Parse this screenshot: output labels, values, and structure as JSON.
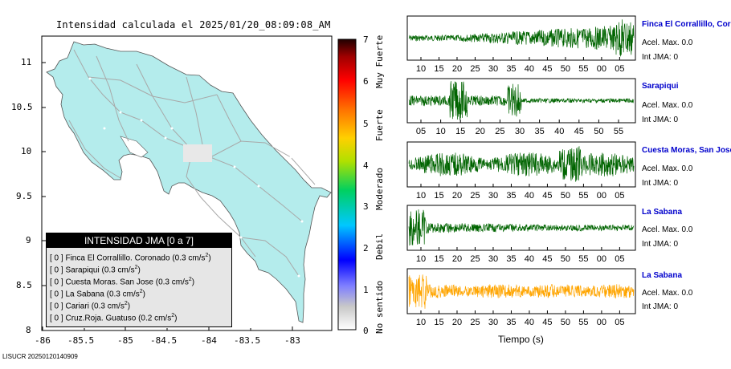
{
  "map": {
    "title": "Intensidad calculada el 2025/01/20_08:09:08_AM",
    "x_ticks": [
      "-86",
      "-85.5",
      "-85",
      "-84.5",
      "-84",
      "-83.5",
      "-83"
    ],
    "y_ticks": [
      "11",
      "10.5",
      "10",
      "9.5",
      "9",
      "8.5",
      "8"
    ],
    "colors": {
      "land": "#b4ecec",
      "roads": "#aaaaaa",
      "points": "#ffffff"
    }
  },
  "legend": {
    "title": "INTENSIDAD JMA [0 a 7]",
    "items": [
      {
        "intensity": "[ 0 ]",
        "name": "Finca El Corrallillo. Coronado",
        "accel": "(0.3 cm/s",
        "unit_exp": "2",
        "close": ")"
      },
      {
        "intensity": "[ 0 ]",
        "name": "Sarapiqui",
        "accel": "(0.3 cm/s",
        "unit_exp": "2",
        "close": ")"
      },
      {
        "intensity": "[ 0 ]",
        "name": "Cuesta Moras. San Jose",
        "accel": "(0.3 cm/s",
        "unit_exp": "2",
        "close": ")"
      },
      {
        "intensity": "[ 0 ]",
        "name": "La Sabana",
        "accel": "(0.3 cm/s",
        "unit_exp": "2",
        "close": ")"
      },
      {
        "intensity": "[ 0 ]",
        "name": "Cariari",
        "accel": "(0.3 cm/s",
        "unit_exp": "2",
        "close": ")"
      },
      {
        "intensity": "[ 0 ]",
        "name": "Cruz.Roja. Guatuso",
        "accel": "(0.2 cm/s",
        "unit_exp": "2",
        "close": ")"
      }
    ]
  },
  "colorbar": {
    "ticks": [
      "0",
      "1",
      "2",
      "3",
      "4",
      "5",
      "6",
      "7"
    ],
    "labels": [
      "No sentido",
      "Debil",
      "Moderado",
      "Fuerte",
      "Muy Fuerte"
    ]
  },
  "footer": "LISUCR 20250120140909",
  "chart_data": {
    "type": "line",
    "xlabel": "Tiempo (s)",
    "stations": [
      {
        "name": "Finca El Corrallillo, Coro",
        "accel_label": "Acel. Max. 0.0",
        "int_label": "Int JMA: 0",
        "color": "#006400",
        "x_ticks": [
          "10",
          "15",
          "20",
          "25",
          "30",
          "35",
          "40",
          "45",
          "50",
          "55",
          "00",
          "05"
        ]
      },
      {
        "name": "Sarapiqui",
        "accel_label": "Acel. Max. 0.0",
        "int_label": "Int JMA: 0",
        "color": "#006400",
        "x_ticks": [
          "05",
          "10",
          "15",
          "20",
          "25",
          "30",
          "35",
          "40",
          "45",
          "50",
          "55"
        ]
      },
      {
        "name": "Cuesta Moras, San Jose",
        "accel_label": "Acel. Max. 0.0",
        "int_label": "Int JMA: 0",
        "color": "#006400",
        "x_ticks": [
          "10",
          "15",
          "20",
          "25",
          "30",
          "35",
          "40",
          "45",
          "50",
          "55",
          "00",
          "05"
        ]
      },
      {
        "name": "La Sabana",
        "accel_label": "Acel. Max. 0.0",
        "int_label": "Int JMA: 0",
        "color": "#006400",
        "x_ticks": [
          "10",
          "15",
          "20",
          "25",
          "30",
          "35",
          "40",
          "45",
          "50",
          "55",
          "00",
          "05"
        ]
      },
      {
        "name": "La Sabana",
        "accel_label": "Acel. Max. 0.0",
        "int_label": "Int JMA: 0",
        "color": "#ffa500",
        "x_ticks": [
          "10",
          "15",
          "20",
          "25",
          "30",
          "35",
          "40",
          "45",
          "50",
          "55",
          "00",
          "05"
        ]
      }
    ]
  }
}
